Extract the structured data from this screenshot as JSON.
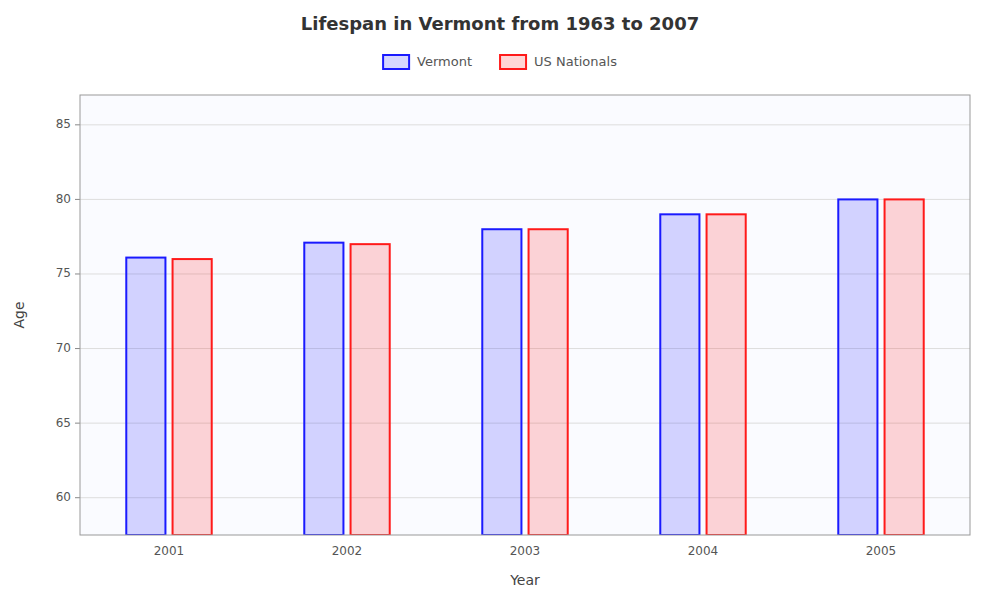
{
  "chart_data": {
    "type": "bar",
    "title": "Lifespan in Vermont from 1963 to 2007",
    "xlabel": "Year",
    "ylabel": "Age",
    "categories": [
      2001,
      2002,
      2003,
      2004,
      2005
    ],
    "series": [
      {
        "name": "Vermont",
        "color": "#1a1aff",
        "values": [
          76.1,
          77.1,
          78.0,
          79.0,
          80.0
        ]
      },
      {
        "name": "US Nationals",
        "color": "#ff1a1a",
        "values": [
          76.0,
          77.0,
          78.0,
          79.0,
          80.0
        ]
      }
    ],
    "ylim": [
      57.5,
      87
    ],
    "yticks": [
      60,
      65,
      70,
      75,
      80,
      85
    ],
    "grid": true,
    "legend": "top"
  }
}
